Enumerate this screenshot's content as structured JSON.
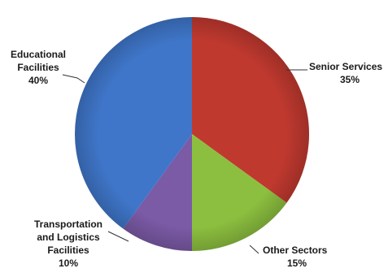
{
  "chart_data": {
    "type": "pie",
    "title": "",
    "series": [
      {
        "name": "",
        "categories": [
          "Senior Services",
          "Other Sectors",
          "Transportation and Logistics Facilities",
          "Educational Facilities"
        ],
        "values": [
          35,
          15,
          10,
          40
        ]
      }
    ],
    "slices": [
      {
        "label_lines": [
          "Senior Services"
        ],
        "pct_text": "35%",
        "value": 35,
        "color": "#C0392F"
      },
      {
        "label_lines": [
          "Other Sectors"
        ],
        "pct_text": "15%",
        "value": 15,
        "color": "#8CBF3F"
      },
      {
        "label_lines": [
          "Transportation",
          "and Logistics",
          "Facilities"
        ],
        "pct_text": "10%",
        "value": 10,
        "color": "#7B5AA6"
      },
      {
        "label_lines": [
          "Educational",
          "Facilities"
        ],
        "pct_text": "40%",
        "value": 40,
        "color": "#3F76C9"
      }
    ],
    "legend": "none",
    "grid": false
  }
}
